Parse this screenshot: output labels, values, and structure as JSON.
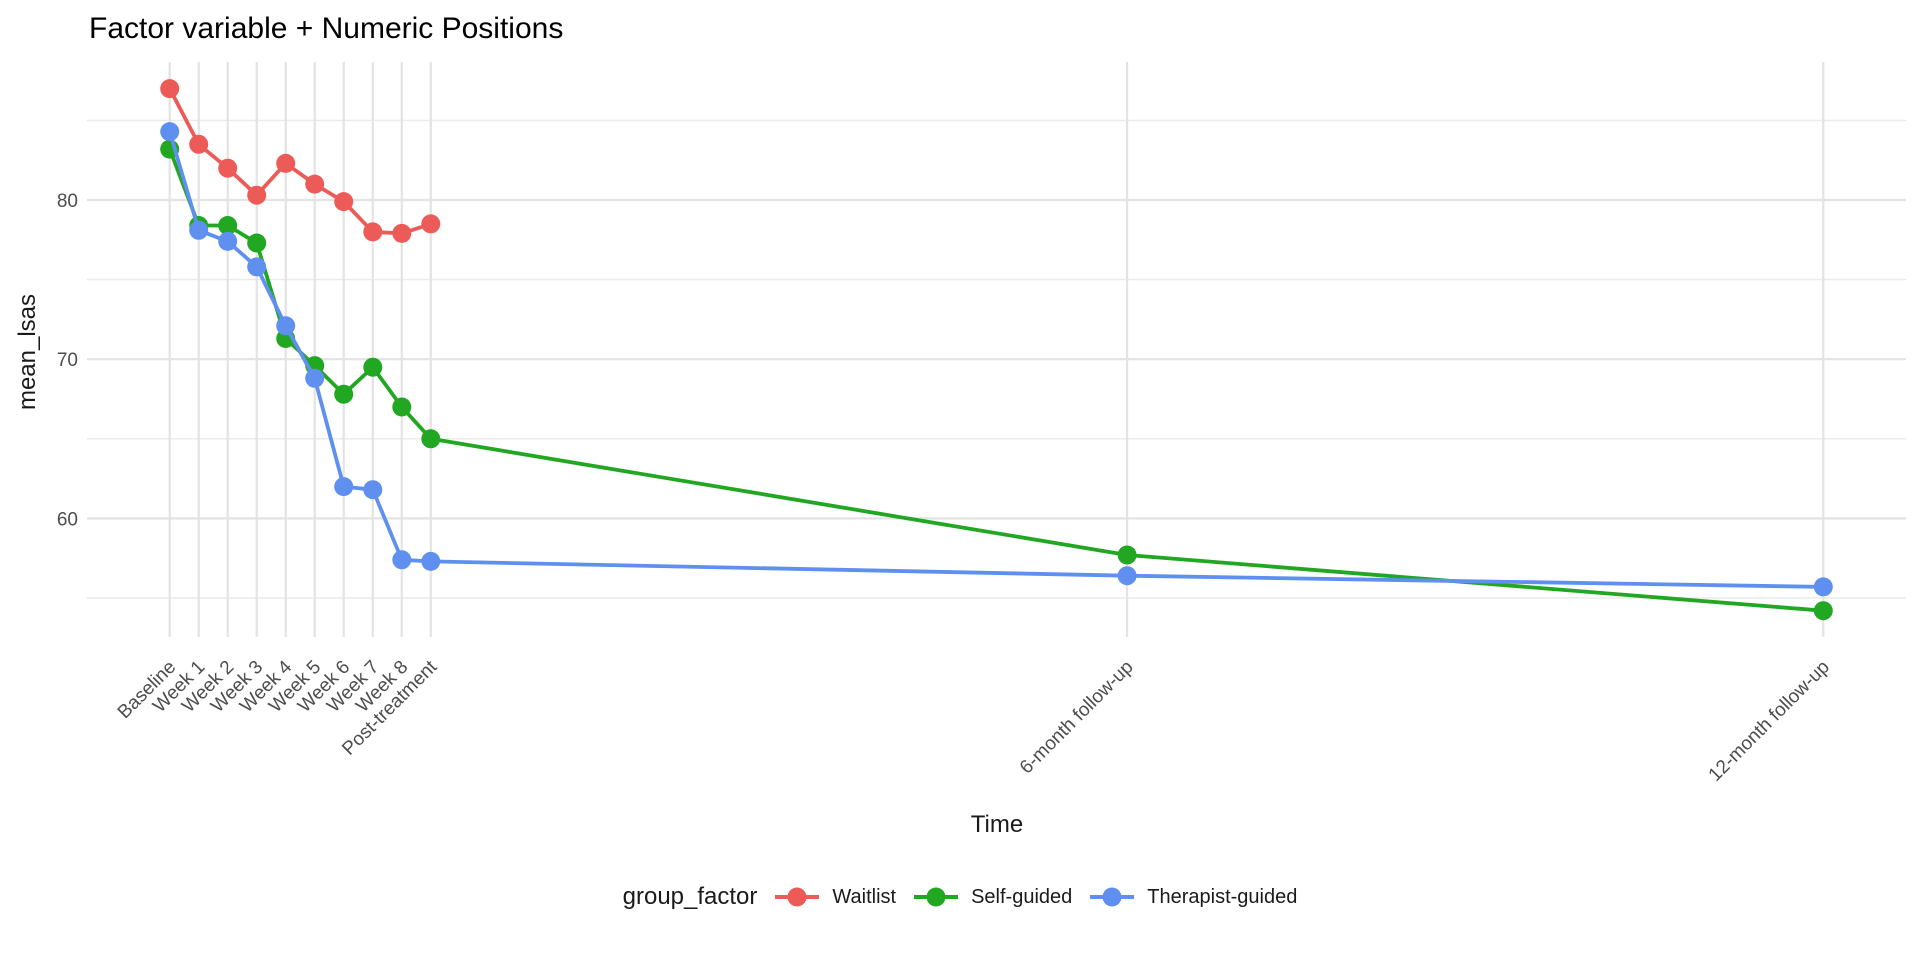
{
  "chart_data": {
    "type": "line",
    "title": "Factor variable + Numeric Positions",
    "xlabel": "Time",
    "ylabel": "mean_lsas",
    "legend": {
      "title": "group_factor",
      "position": "bottom"
    },
    "x_ticks": [
      {
        "pos": 0,
        "label": "Baseline"
      },
      {
        "pos": 1,
        "label": "Week 1"
      },
      {
        "pos": 2,
        "label": "Week 2"
      },
      {
        "pos": 3,
        "label": "Week 3"
      },
      {
        "pos": 4,
        "label": "Week 4"
      },
      {
        "pos": 5,
        "label": "Week 5"
      },
      {
        "pos": 6,
        "label": "Week 6"
      },
      {
        "pos": 7,
        "label": "Week 7"
      },
      {
        "pos": 8,
        "label": "Week 8"
      },
      {
        "pos": 9,
        "label": "Post-treatment"
      },
      {
        "pos": 33,
        "label": "6-month follow-up"
      },
      {
        "pos": 57,
        "label": "12-month follow-up"
      }
    ],
    "y_major_ticks": [
      60,
      70,
      80
    ],
    "y_minor_ticks": [
      55,
      65,
      75,
      85
    ],
    "x_range": [
      -2.85,
      59.85
    ],
    "y_range": [
      52.55,
      88.67
    ],
    "grid": {
      "show": true,
      "major_color": "#E3E3E3",
      "minor_color": "#EAEAEA"
    },
    "tick_label_color": "#4D4D4D",
    "series": [
      {
        "name": "Waitlist",
        "color": "#EC5B57",
        "x": [
          0,
          1,
          2,
          3,
          4,
          5,
          6,
          7,
          8,
          9
        ],
        "values": [
          87.0,
          83.5,
          82.0,
          80.3,
          82.3,
          81.0,
          79.9,
          78.0,
          77.9,
          78.5
        ]
      },
      {
        "name": "Self-guided",
        "color": "#21A721",
        "x": [
          0,
          1,
          2,
          3,
          4,
          5,
          6,
          7,
          8,
          9,
          33,
          57
        ],
        "values": [
          83.2,
          78.4,
          78.4,
          77.3,
          71.3,
          69.6,
          67.8,
          69.5,
          67.0,
          65.0,
          57.7,
          54.2
        ]
      },
      {
        "name": "Therapist-guided",
        "color": "#5F90EF",
        "x": [
          0,
          1,
          2,
          3,
          4,
          5,
          6,
          7,
          8,
          9,
          33,
          57
        ],
        "values": [
          84.3,
          78.1,
          77.4,
          75.8,
          72.1,
          68.8,
          62.0,
          61.8,
          57.4,
          57.3,
          56.4,
          55.7
        ]
      }
    ]
  }
}
